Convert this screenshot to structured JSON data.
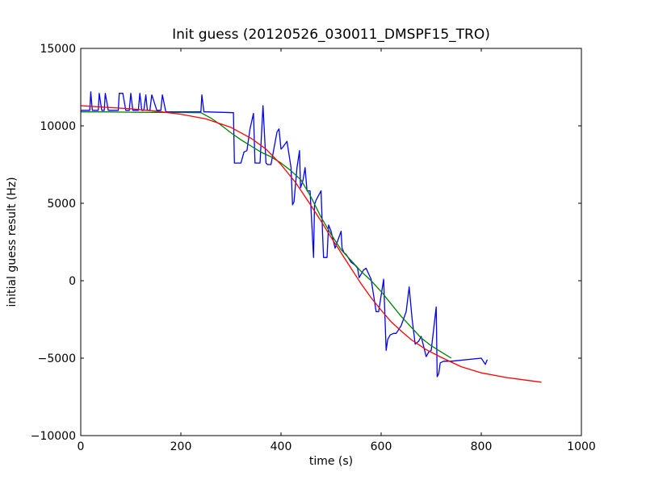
{
  "chart_data": {
    "type": "line",
    "title": "Init guess (20120526_030011_DMSPF15_TRO)",
    "xlabel": "time (s)",
    "ylabel": "initial guess result (Hz)",
    "xlim": [
      0,
      1000
    ],
    "ylim": [
      -10000,
      15000
    ],
    "xticks": [
      0,
      200,
      400,
      600,
      800,
      1000
    ],
    "yticks": [
      -10000,
      -5000,
      0,
      5000,
      10000,
      15000
    ],
    "xtick_labels": [
      "0",
      "200",
      "400",
      "600",
      "800",
      "1000"
    ],
    "ytick_labels": [
      "−10000",
      "−5000",
      "0",
      "5000",
      "10000",
      "15000"
    ],
    "grid": false,
    "series": [
      {
        "color": "#0000ff",
        "x": [
          0,
          18,
          20,
          23,
          35,
          37,
          42,
          47,
          49,
          55,
          57,
          60,
          75,
          77,
          84,
          90,
          97,
          100,
          104,
          108,
          115,
          118,
          122,
          126,
          130,
          133,
          138,
          142,
          152,
          155,
          160,
          163,
          170,
          240,
          242,
          246,
          250,
          305,
          307,
          320,
          326,
          332,
          338,
          345,
          348,
          350,
          358,
          364,
          370,
          373,
          377,
          380,
          392,
          396,
          400,
          403,
          412,
          420,
          423,
          426,
          432,
          437,
          439,
          444,
          448,
          452,
          458,
          465,
          467,
          470,
          480,
          483,
          485,
          487,
          492,
          495,
          500,
          508,
          520,
          522,
          526,
          530,
          540,
          548,
          553,
          556,
          565,
          570,
          580,
          590,
          595,
          605,
          610,
          613,
          618,
          625,
          630,
          640,
          650,
          656,
          662,
          668,
          675,
          680,
          690,
          695,
          700,
          710,
          712,
          715,
          718,
          725,
          740,
          800,
          808,
          812
        ],
        "y": [
          11000,
          11000,
          12200,
          11000,
          11000,
          12100,
          11000,
          11000,
          12100,
          11000,
          11000,
          11000,
          11000,
          12100,
          12100,
          11000,
          11000,
          12100,
          11000,
          11000,
          11000,
          12100,
          11000,
          11000,
          12000,
          11000,
          11000,
          12000,
          11000,
          11000,
          11000,
          12000,
          10900,
          10900,
          12000,
          10900,
          10900,
          10850,
          7600,
          7600,
          8300,
          8400,
          9800,
          10800,
          7600,
          7600,
          7600,
          11300,
          7600,
          7500,
          7500,
          7500,
          9600,
          9800,
          8500,
          8600,
          9000,
          7300,
          4900,
          5100,
          7300,
          8400,
          6000,
          6500,
          7300,
          5800,
          5800,
          1500,
          4900,
          5200,
          5800,
          3000,
          1500,
          1500,
          1500,
          3600,
          3200,
          2100,
          3200,
          2100,
          1800,
          1700,
          1200,
          1000,
          800,
          200,
          700,
          800,
          100,
          -2000,
          -2000,
          100,
          -4500,
          -3800,
          -3500,
          -3400,
          -3400,
          -2900,
          -2000,
          -400,
          -2500,
          -4100,
          -3900,
          -3600,
          -4900,
          -4600,
          -4500,
          -1700,
          -6200,
          -6000,
          -5300,
          -5200,
          -5200,
          -5000,
          -5400,
          -5100
        ]
      },
      {
        "color": "#008000",
        "x": [
          0,
          50,
          100,
          150,
          200,
          240,
          260,
          280,
          300,
          320,
          340,
          360,
          380,
          400,
          420,
          440,
          460,
          480,
          500,
          520,
          540,
          560,
          580,
          600,
          620,
          640,
          660,
          680,
          700,
          715,
          730,
          740
        ],
        "y": [
          10900,
          10900,
          10880,
          10870,
          10860,
          10850,
          10500,
          10050,
          9550,
          9100,
          8700,
          8300,
          8000,
          7600,
          7100,
          6500,
          5400,
          4100,
          3000,
          2000,
          1300,
          600,
          0,
          -700,
          -1500,
          -2300,
          -3000,
          -3700,
          -4200,
          -4500,
          -4800,
          -5000
        ]
      },
      {
        "color": "#ff0000",
        "x": [
          0,
          50,
          100,
          150,
          200,
          250,
          300,
          340,
          370,
          400,
          430,
          460,
          480,
          500,
          520,
          540,
          560,
          580,
          600,
          620,
          640,
          660,
          690,
          720,
          760,
          800,
          850,
          920
        ],
        "y": [
          11300,
          11200,
          11100,
          10950,
          10750,
          10450,
          9900,
          9200,
          8500,
          7500,
          6300,
          4850,
          3850,
          2800,
          1800,
          800,
          -200,
          -1100,
          -1900,
          -2650,
          -3250,
          -3800,
          -4450,
          -4950,
          -5550,
          -5950,
          -6250,
          -6550
        ]
      }
    ]
  }
}
